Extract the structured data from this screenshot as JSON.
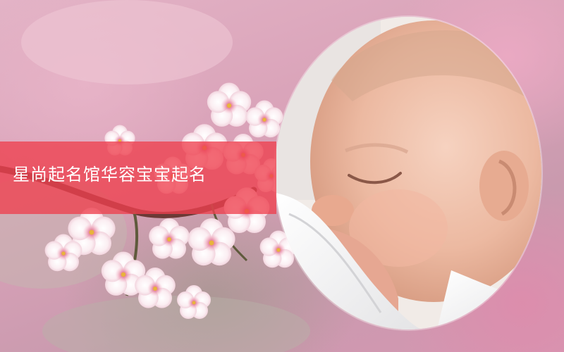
{
  "banner": {
    "title": "星尚起名馆华容宝宝起名",
    "ribbon_color": "#ee404e",
    "background_color": "#d9a2b8",
    "photo_subject": "sleeping-newborn-baby",
    "decoration": "cherry-blossom-branch"
  }
}
